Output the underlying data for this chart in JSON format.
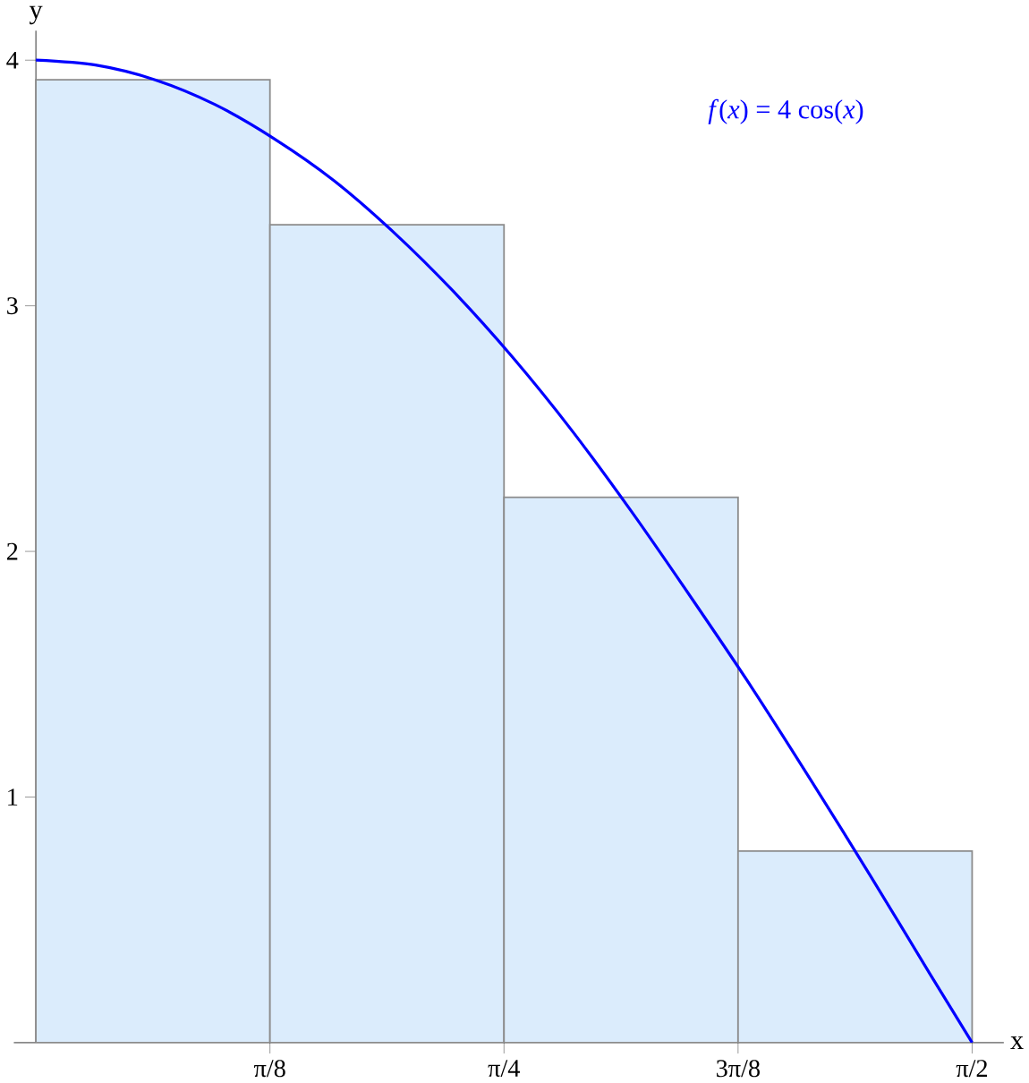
{
  "chart_data": {
    "type": "histogram",
    "bins": [
      0,
      0.3927,
      0.7854,
      1.1781,
      1.5708
    ],
    "values": [
      3.92,
      3.33,
      2.22,
      0.78
    ],
    "color": "#dbecfc",
    "xlabel": "x",
    "ylabel": "y",
    "xlim": [
      -0.037,
      1.624
    ],
    "ylim": [
      0,
      4.12
    ],
    "xticks": [
      {
        "value": 0,
        "label": null
      },
      {
        "value": 0.3927,
        "label": "π/8"
      },
      {
        "value": 0.7854,
        "label": "π/4"
      },
      {
        "value": 1.1781,
        "label": "3π/8"
      },
      {
        "value": 1.5708,
        "label": "π/2"
      }
    ],
    "yticks": [
      1,
      2,
      3,
      4
    ],
    "series": [
      {
        "type": "line",
        "name": "*f*(*x*) = 4 cos(*x*)",
        "color": "#0000ff",
        "x": [
          0,
          0.1,
          0.2,
          0.3,
          0.4,
          0.5,
          0.6,
          0.7,
          0.8,
          0.9,
          1.0,
          1.1,
          1.2,
          1.3,
          1.4,
          1.5,
          1.5708
        ],
        "values": [
          4.0,
          3.98,
          3.92,
          3.82,
          3.68,
          3.51,
          3.3,
          3.06,
          2.79,
          2.49,
          2.16,
          1.81,
          1.45,
          1.07,
          0.68,
          0.28,
          0.0
        ]
      }
    ]
  }
}
